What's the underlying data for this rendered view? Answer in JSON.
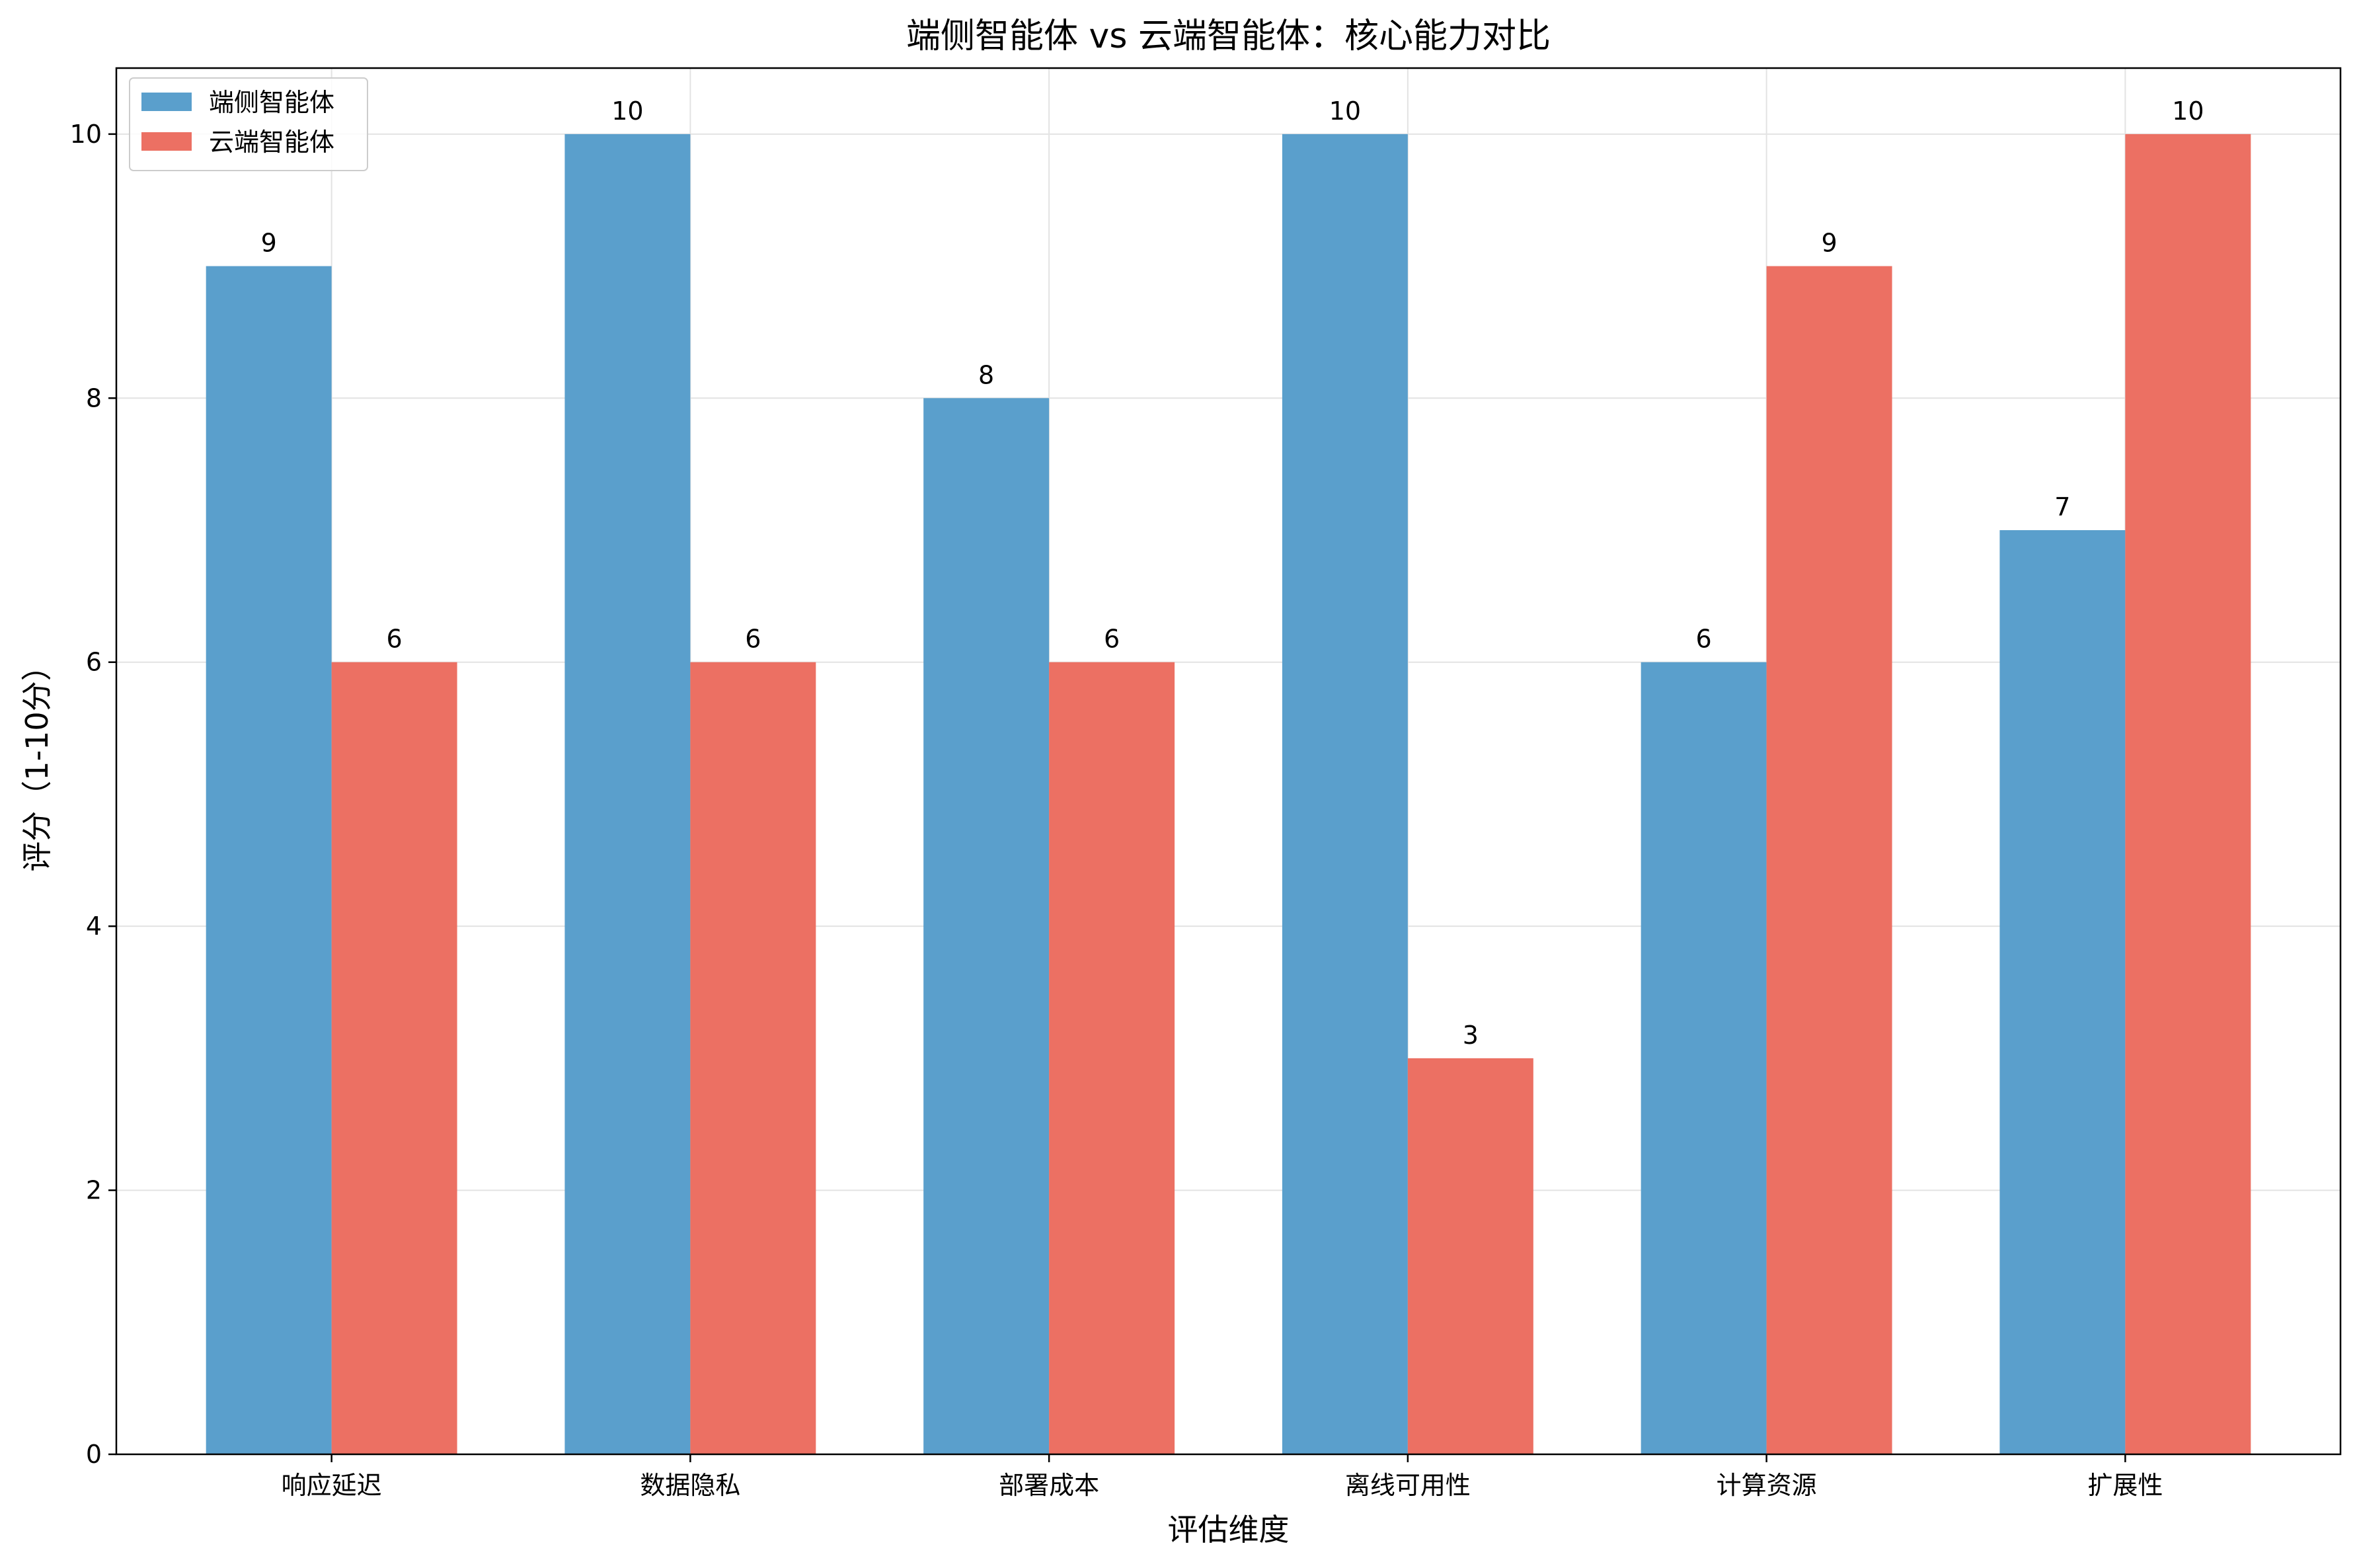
{
  "chart_data": {
    "type": "bar",
    "title": "端侧智能体 vs 云端智能体：核心能力对比",
    "xlabel": "评估维度",
    "ylabel": "评分（1-10分）",
    "categories": [
      "响应延迟",
      "数据隐私",
      "部署成本",
      "离线可用性",
      "计算资源",
      "扩展性"
    ],
    "series": [
      {
        "name": "端侧智能体",
        "color": "#5a9fcc",
        "values": [
          9,
          10,
          8,
          10,
          6,
          7
        ]
      },
      {
        "name": "云端智能体",
        "color": "#ec7063",
        "values": [
          6,
          6,
          6,
          3,
          9,
          10
        ]
      }
    ],
    "ylim": [
      0,
      10.5
    ],
    "yticks": [
      0,
      2,
      4,
      6,
      8,
      10
    ],
    "grid": true,
    "legend_position": "top-left",
    "data_labels": true
  }
}
